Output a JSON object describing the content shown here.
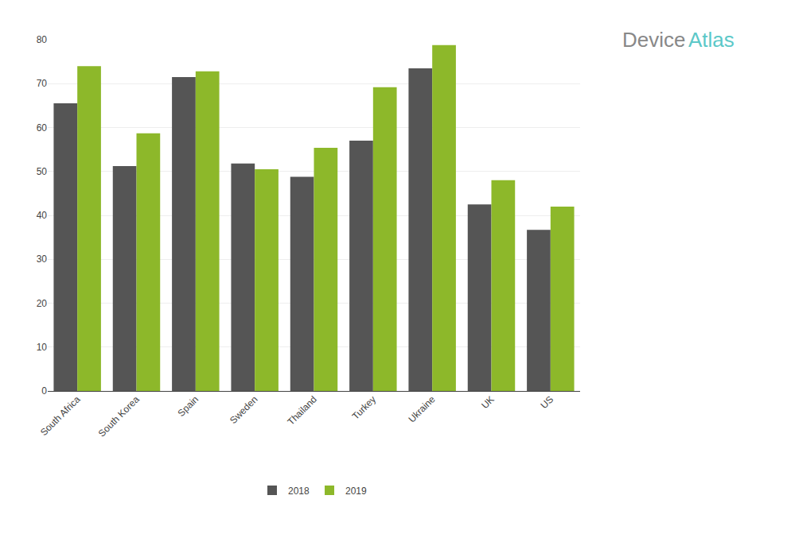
{
  "chart_data": {
    "type": "bar",
    "categories": [
      "South Africa",
      "South Korea",
      "Spain",
      "Sweden",
      "Thailand",
      "Turkey",
      "Ukraine",
      "UK",
      "US"
    ],
    "series": [
      {
        "name": "2018",
        "color": "#555555",
        "values": [
          65.5,
          51.2,
          71.5,
          51.8,
          48.8,
          57.0,
          73.5,
          42.5,
          36.7
        ]
      },
      {
        "name": "2019",
        "color": "#8db82a",
        "values": [
          74.0,
          58.7,
          72.8,
          50.5,
          55.4,
          69.2,
          78.8,
          48.0,
          42.0
        ]
      }
    ],
    "ylim": [
      0,
      80
    ],
    "yticks": [
      0,
      10,
      20,
      30,
      40,
      50,
      60,
      70,
      80
    ],
    "grid": true,
    "legend": "bottom",
    "annotations": [
      {
        "text": "Device",
        "color": "#888888"
      },
      {
        "text": "Atlas",
        "color": "#5cc8c8"
      }
    ]
  }
}
